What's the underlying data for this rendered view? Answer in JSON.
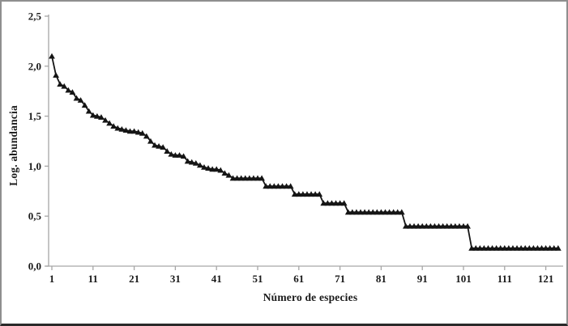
{
  "chart_data": {
    "type": "line",
    "title": "",
    "xlabel": "Número de especies",
    "ylabel": "Log. abundancia",
    "x_tick_values": [
      1,
      11,
      21,
      31,
      41,
      51,
      61,
      71,
      81,
      91,
      101,
      111,
      121
    ],
    "x_tick_labels": [
      "1",
      "11",
      "21",
      "31",
      "41",
      "51",
      "61",
      "71",
      "81",
      "91",
      "101",
      "111",
      "121"
    ],
    "y_tick_values": [
      0,
      0.5,
      1.0,
      1.5,
      2.0,
      2.5
    ],
    "y_tick_labels": [
      "0,0",
      "0,5",
      "1,0",
      "1,5",
      "2,0",
      "2,5"
    ],
    "xlim": [
      1,
      124
    ],
    "ylim": [
      0,
      2.5
    ],
    "grid": false,
    "legend": "none",
    "marker": "filled-triangle-up",
    "series": [
      {
        "name": "Log. abundancia",
        "x_start_rank": 1,
        "values": [
          2.1,
          1.91,
          1.82,
          1.8,
          1.76,
          1.74,
          1.68,
          1.66,
          1.61,
          1.55,
          1.51,
          1.5,
          1.49,
          1.46,
          1.43,
          1.4,
          1.38,
          1.37,
          1.36,
          1.35,
          1.35,
          1.34,
          1.33,
          1.3,
          1.25,
          1.21,
          1.2,
          1.19,
          1.15,
          1.12,
          1.11,
          1.11,
          1.1,
          1.05,
          1.04,
          1.03,
          1.01,
          0.99,
          0.98,
          0.97,
          0.97,
          0.96,
          0.93,
          0.91,
          0.88,
          0.88,
          0.88,
          0.88,
          0.88,
          0.88,
          0.88,
          0.88,
          0.8,
          0.8,
          0.8,
          0.8,
          0.8,
          0.8,
          0.8,
          0.72,
          0.72,
          0.72,
          0.72,
          0.72,
          0.72,
          0.72,
          0.63,
          0.63,
          0.63,
          0.63,
          0.63,
          0.63,
          0.54,
          0.54,
          0.54,
          0.54,
          0.54,
          0.54,
          0.54,
          0.54,
          0.54,
          0.54,
          0.54,
          0.54,
          0.54,
          0.54,
          0.4,
          0.4,
          0.4,
          0.4,
          0.4,
          0.4,
          0.4,
          0.4,
          0.4,
          0.4,
          0.4,
          0.4,
          0.4,
          0.4,
          0.4,
          0.4,
          0.18,
          0.18,
          0.18,
          0.18,
          0.18,
          0.18,
          0.18,
          0.18,
          0.18,
          0.18,
          0.18,
          0.18,
          0.18,
          0.18,
          0.18,
          0.18,
          0.18,
          0.18,
          0.18,
          0.18,
          0.18,
          0.18
        ]
      }
    ],
    "colors": {
      "series": "#151515",
      "axis": "#a6a6a6",
      "text": "#1a1a1a",
      "background": "#ffffff",
      "frame_border": "#8f8f8f",
      "frame_border_bottom": "#2a2a2a"
    }
  }
}
